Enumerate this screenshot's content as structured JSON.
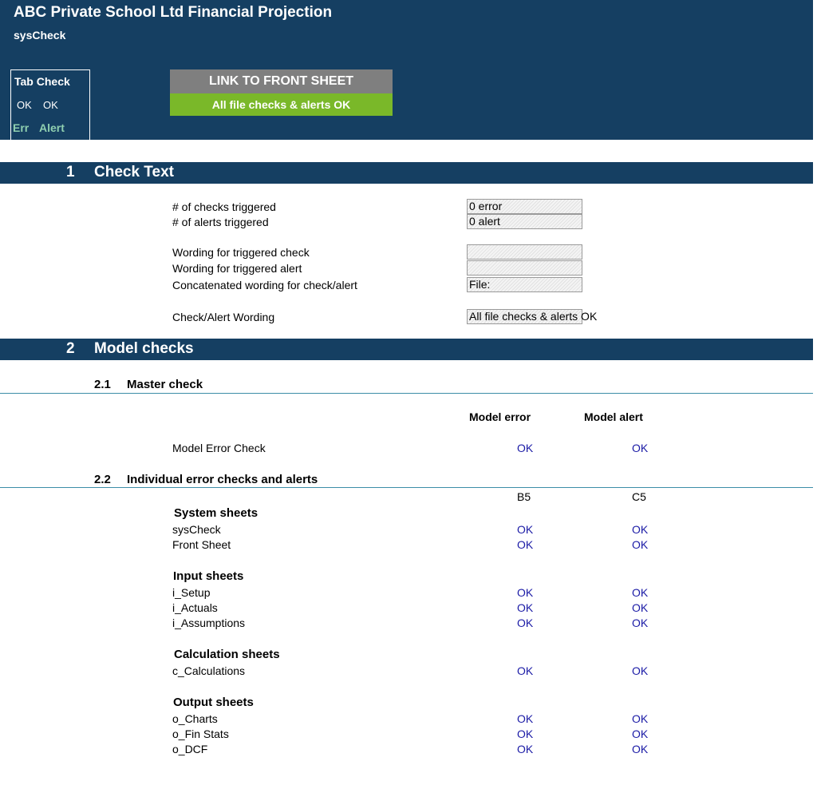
{
  "header": {
    "title": "ABC Private School Ltd Financial Projection",
    "sheet_name": "sysCheck",
    "tab_check": {
      "title": "Tab Check",
      "err_status": "OK",
      "alert_status": "OK",
      "err_label": "Err",
      "alert_label": "Alert"
    },
    "link_button": "LINK TO FRONT SHEET",
    "status_message": "All file checks & alerts OK",
    "colors": {
      "navy": "#153f62",
      "status_green": "#7ab829",
      "button_grey": "#7f7f7f",
      "ok_blue": "#1a1aa6"
    }
  },
  "section1": {
    "number": "1",
    "title": "Check Text",
    "rows": {
      "checks_triggered": {
        "label": "# of checks triggered",
        "value": "0 error"
      },
      "alerts_triggered": {
        "label": "# of alerts triggered",
        "value": "0 alert"
      },
      "wording_check": {
        "label": "Wording for triggered check",
        "value": ""
      },
      "wording_alert": {
        "label": "Wording for triggered alert",
        "value": ""
      },
      "concatenated": {
        "label": "Concatenated wording for check/alert",
        "value": "File:"
      },
      "check_alert_wording": {
        "label": "Check/Alert Wording",
        "value": "All file checks & alerts OK"
      }
    }
  },
  "section2": {
    "number": "2",
    "title": "Model checks",
    "master": {
      "number": "2.1",
      "title": "Master check",
      "col_error": "Model error",
      "col_alert": "Model alert",
      "row_label": "Model Error Check",
      "error": "OK",
      "alert": "OK"
    },
    "individual": {
      "number": "2.2",
      "title": "Individual error checks and alerts",
      "ref_error": "B5",
      "ref_alert": "C5",
      "groups": {
        "system": {
          "title": "System sheets",
          "rows": [
            {
              "name": "sysCheck",
              "error": "OK",
              "alert": "OK"
            },
            {
              "name": "Front Sheet",
              "error": "OK",
              "alert": "OK"
            }
          ]
        },
        "input": {
          "title": "Input sheets",
          "rows": [
            {
              "name": "i_Setup",
              "error": "OK",
              "alert": "OK"
            },
            {
              "name": "i_Actuals",
              "error": "OK",
              "alert": "OK"
            },
            {
              "name": "i_Assumptions",
              "error": "OK",
              "alert": "OK"
            }
          ]
        },
        "calc": {
          "title": "Calculation sheets",
          "rows": [
            {
              "name": "c_Calculations",
              "error": "OK",
              "alert": "OK"
            }
          ]
        },
        "output": {
          "title": "Output sheets",
          "rows": [
            {
              "name": "o_Charts",
              "error": "OK",
              "alert": "OK"
            },
            {
              "name": "o_Fin Stats",
              "error": "OK",
              "alert": "OK"
            },
            {
              "name": "o_DCF",
              "error": "OK",
              "alert": "OK"
            }
          ]
        }
      }
    }
  }
}
